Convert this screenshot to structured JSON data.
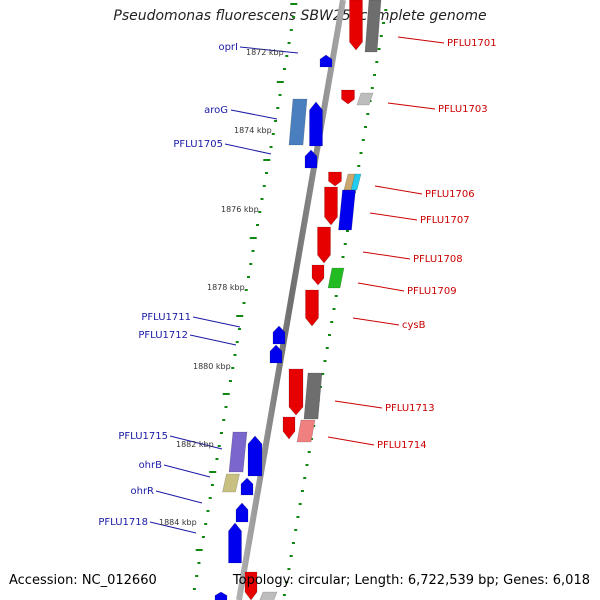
{
  "title": "Pseudomonas fluorescens SBW25, complete genome",
  "footer": {
    "accession": "Accession: NC_012660",
    "topology": "Topology: circular; Length: 6,722,539 bp; Genes: 6,018"
  },
  "scale_marks": [
    "1872 kbp",
    "1874 kbp",
    "1876 kbp",
    "1878 kbp",
    "1880 kbp",
    "1882 kbp",
    "1884 kbp"
  ],
  "genes_left": [
    "oprI",
    "aroG",
    "PFLU1705",
    "PFLU1711",
    "PFLU1712",
    "PFLU1715",
    "ohrB",
    "ohrR",
    "PFLU1718"
  ],
  "genes_right": [
    "PFLU1701",
    "PFLU1703",
    "PFLU1706",
    "PFLU1707",
    "PFLU1708",
    "PFLU1709",
    "cysB",
    "PFLU1713",
    "PFLU1714"
  ],
  "colors": {
    "left_label": "#1a1aa6",
    "right_label": "#cc0000",
    "forward": "#e60000",
    "reverse": "#0000ee",
    "grey": "#6e6e6e",
    "tick": "#118811",
    "axis": "#888888"
  }
}
